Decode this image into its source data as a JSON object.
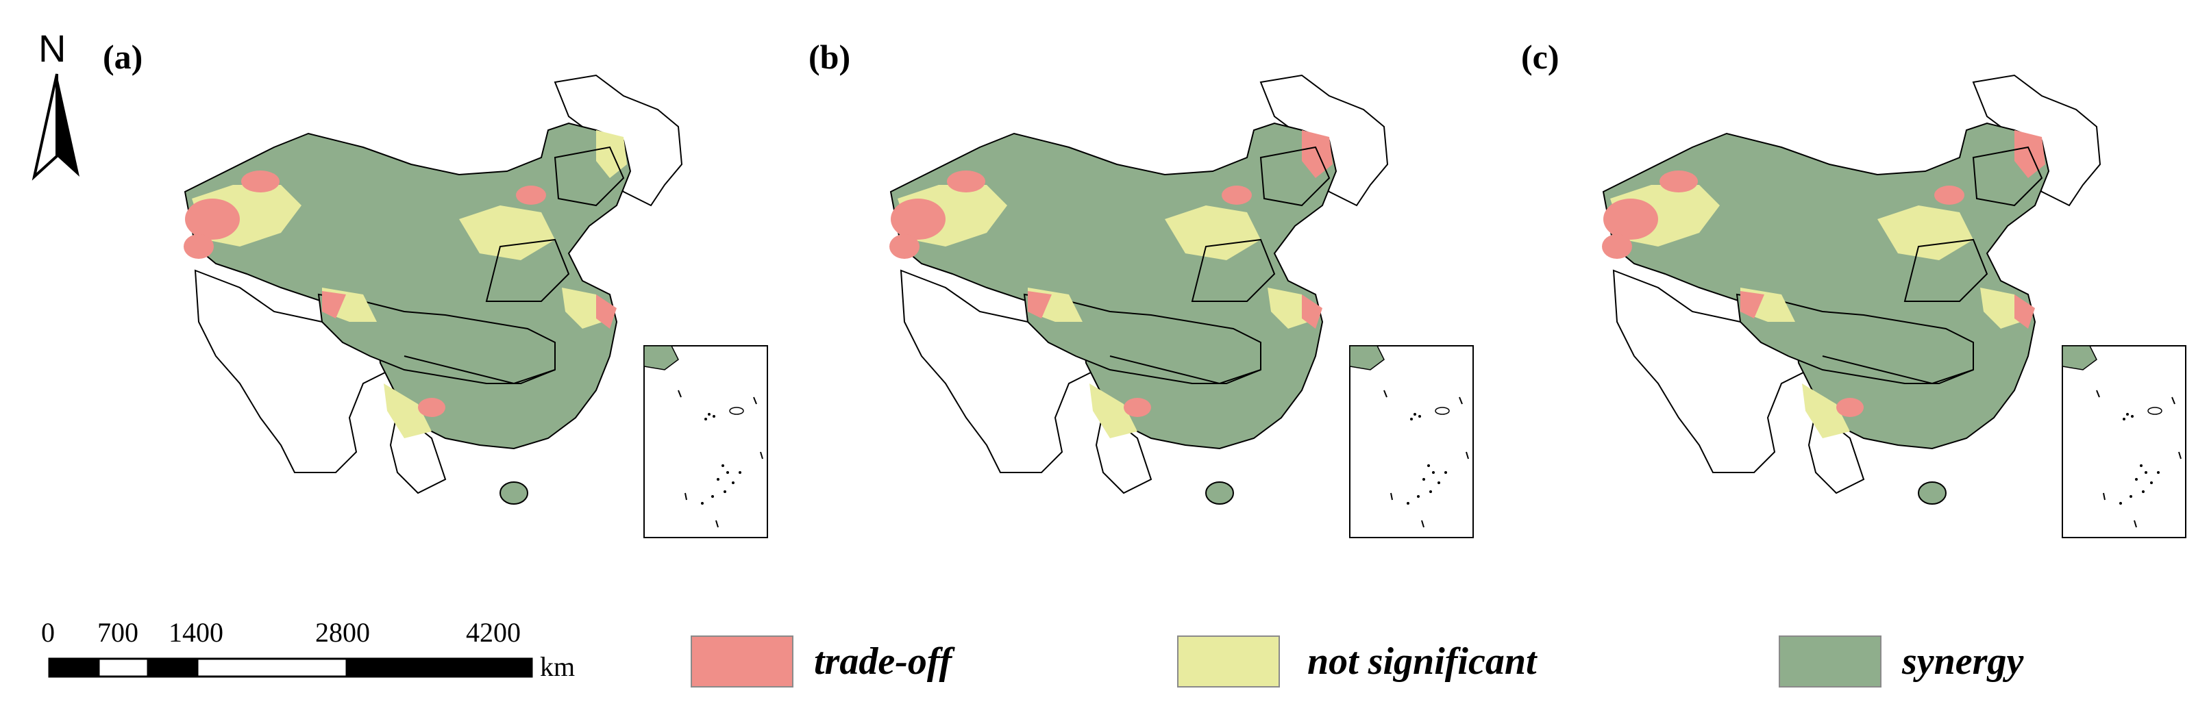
{
  "panels": [
    {
      "label": "(a)"
    },
    {
      "label": "(b)"
    },
    {
      "label": "(c)"
    }
  ],
  "north_arrow": {
    "letter": "N",
    "icon": "north-arrow-icon"
  },
  "scale_bar": {
    "ticks": [
      "0",
      "700",
      "1400",
      "2800",
      "4200"
    ],
    "unit": "km"
  },
  "legend": [
    {
      "label": "trade-off",
      "color": "#f08f89"
    },
    {
      "label": "not significant",
      "color": "#e8eb9f"
    },
    {
      "label": "synergy",
      "color": "#8fae8c"
    }
  ],
  "colors": {
    "trade_off": "#f08f89",
    "not_significant": "#e8eb9f",
    "synergy": "#8fae8c",
    "outline": "#000000"
  }
}
